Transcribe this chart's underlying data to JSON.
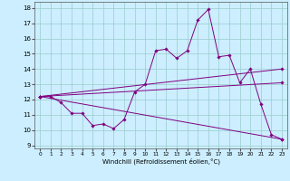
{
  "x": [
    0,
    1,
    2,
    3,
    4,
    5,
    6,
    7,
    8,
    9,
    10,
    11,
    12,
    13,
    14,
    15,
    16,
    17,
    18,
    19,
    20,
    21,
    22,
    23
  ],
  "line1": [
    12.2,
    12.2,
    11.8,
    11.1,
    11.1,
    10.3,
    10.4,
    10.1,
    10.7,
    12.5,
    13.0,
    15.2,
    15.3,
    14.7,
    15.2,
    17.2,
    17.9,
    14.8,
    14.9,
    13.1,
    14.0,
    11.7,
    9.7,
    9.4
  ],
  "line2_x": [
    0,
    23
  ],
  "line2_y": [
    12.2,
    14.0
  ],
  "line3_x": [
    0,
    23
  ],
  "line3_y": [
    12.2,
    13.1
  ],
  "line4_x": [
    0,
    23
  ],
  "line4_y": [
    12.2,
    9.4
  ],
  "color": "#800080",
  "bg_color": "#cceeff",
  "grid_color": "#99cccc",
  "xlabel": "Windchill (Refroidissement éolien,°C)",
  "ylabel_ticks": [
    9,
    10,
    11,
    12,
    13,
    14,
    15,
    16,
    17,
    18
  ],
  "xtick_labels": [
    "0",
    "1",
    "2",
    "3",
    "4",
    "5",
    "6",
    "7",
    "8",
    "9",
    "10",
    "11",
    "12",
    "13",
    "14",
    "15",
    "16",
    "17",
    "18",
    "19",
    "20",
    "21",
    "22",
    "23"
  ],
  "ylim": [
    8.8,
    18.4
  ],
  "xlim": [
    -0.5,
    23.5
  ]
}
